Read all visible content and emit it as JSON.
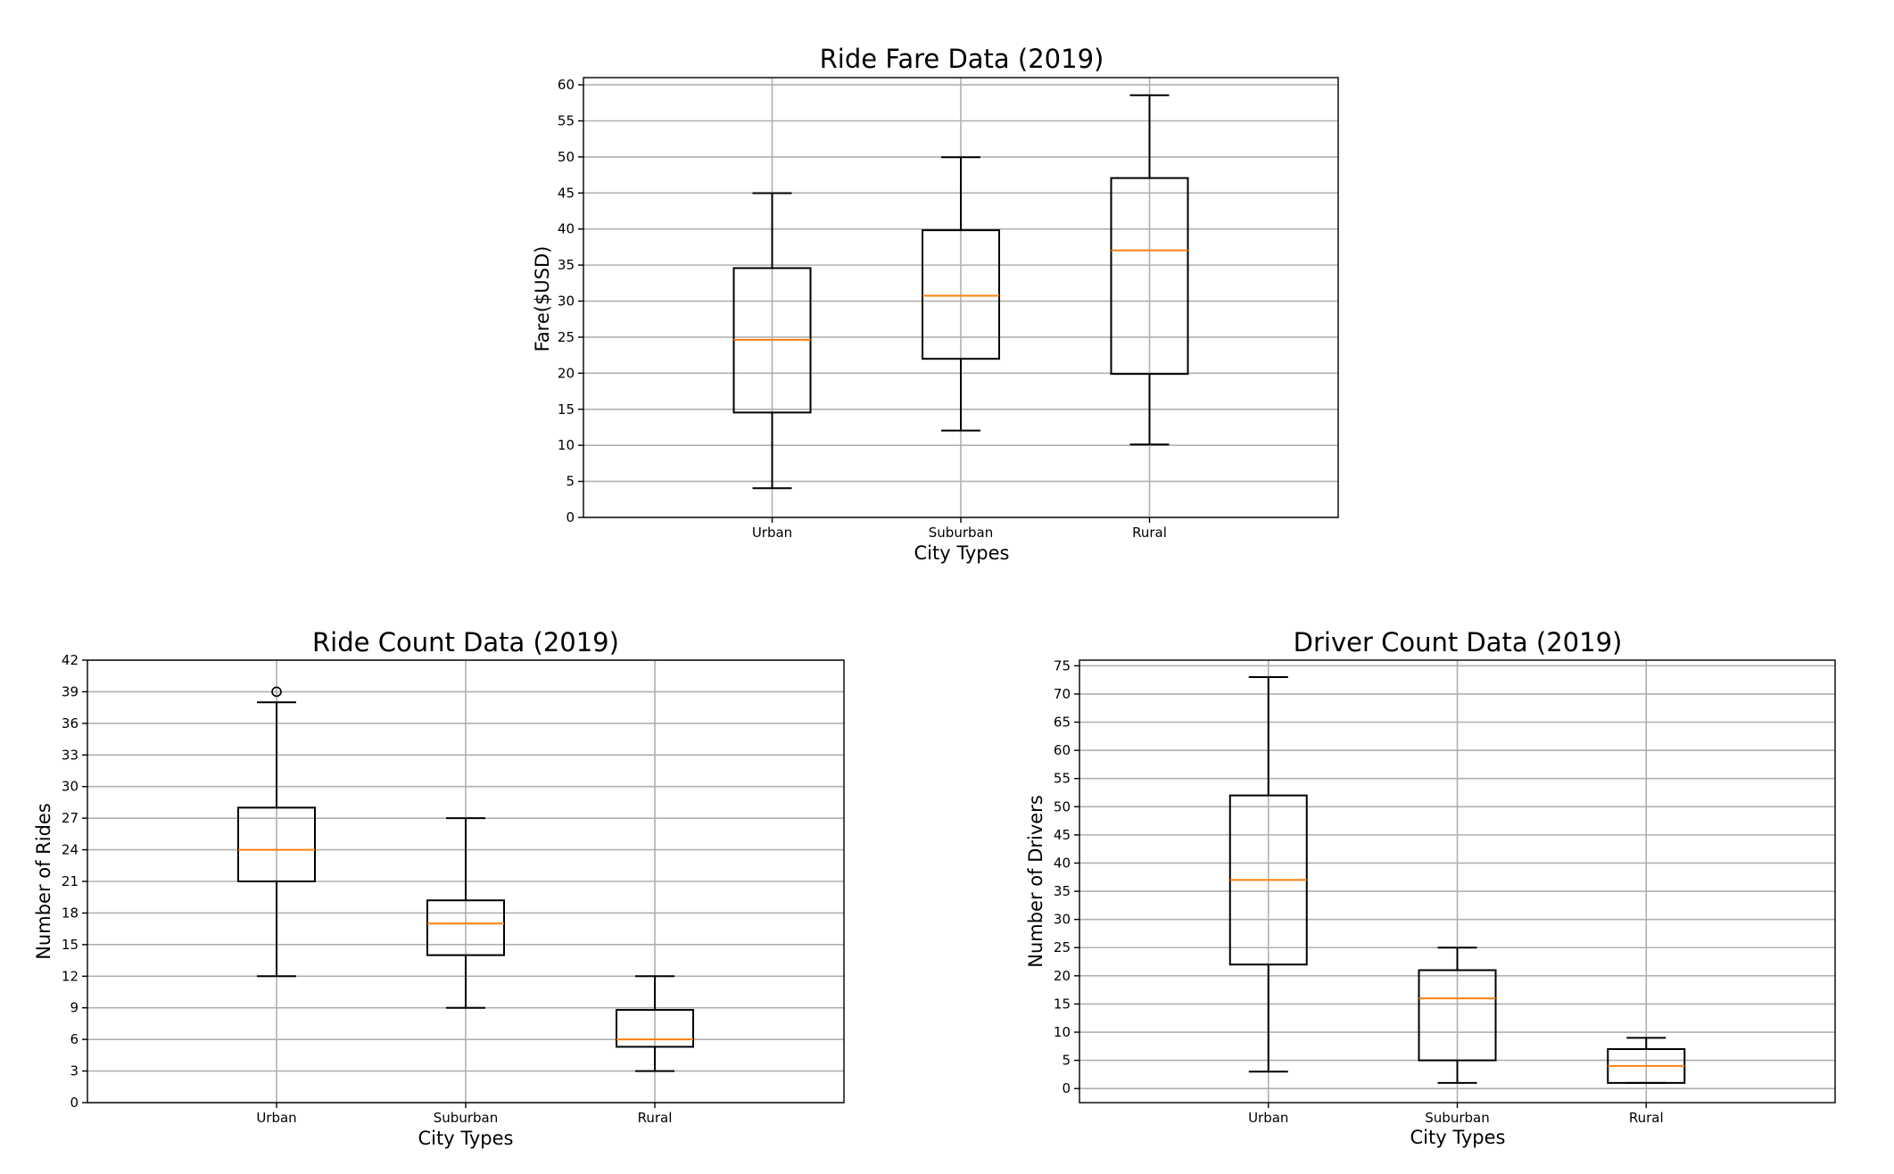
{
  "chart_data": [
    {
      "type": "box",
      "title": "Ride Fare Data (2019)",
      "xlabel": "City Types",
      "ylabel": "Fare($USD)",
      "categories": [
        "Urban",
        "Suburban",
        "Rural"
      ],
      "ylim": [
        0,
        61
      ],
      "yticks": [
        0,
        5,
        10,
        15,
        20,
        25,
        30,
        35,
        40,
        45,
        50,
        55,
        60
      ],
      "grid": true,
      "median_color": "#ff7f0e",
      "boxes": [
        {
          "category": "Urban",
          "whisker_low": 4.05,
          "q1": 14.55,
          "median": 24.64,
          "q3": 34.58,
          "whisker_high": 44.97,
          "outliers": []
        },
        {
          "category": "Suburban",
          "whisker_low": 12.05,
          "q1": 22.0,
          "median": 30.75,
          "q3": 39.83,
          "whisker_high": 49.96,
          "outliers": []
        },
        {
          "category": "Rural",
          "whisker_low": 10.11,
          "q1": 19.9,
          "median": 37.05,
          "q3": 47.07,
          "whisker_high": 58.55,
          "outliers": []
        }
      ]
    },
    {
      "type": "box",
      "title": "Ride Count Data (2019)",
      "xlabel": "City Types",
      "ylabel": "Number of Rides",
      "categories": [
        "Urban",
        "Suburban",
        "Rural"
      ],
      "ylim": [
        0,
        42
      ],
      "yticks": [
        0,
        3,
        6,
        9,
        12,
        15,
        18,
        21,
        24,
        27,
        30,
        33,
        36,
        39,
        42
      ],
      "grid": true,
      "median_color": "#ff7f0e",
      "boxes": [
        {
          "category": "Urban",
          "whisker_low": 12,
          "q1": 21,
          "median": 24,
          "q3": 28,
          "whisker_high": 38,
          "outliers": [
            39
          ]
        },
        {
          "category": "Suburban",
          "whisker_low": 9,
          "q1": 14,
          "median": 17,
          "q3": 19.2,
          "whisker_high": 27,
          "outliers": []
        },
        {
          "category": "Rural",
          "whisker_low": 3,
          "q1": 5.3,
          "median": 6,
          "q3": 8.8,
          "whisker_high": 12,
          "outliers": []
        }
      ]
    },
    {
      "type": "box",
      "title": "Driver Count Data (2019)",
      "xlabel": "City Types",
      "ylabel": "Number of Drivers",
      "categories": [
        "Urban",
        "Suburban",
        "Rural"
      ],
      "ylim": [
        -2.5,
        76
      ],
      "yticks": [
        0,
        5,
        10,
        15,
        20,
        25,
        30,
        35,
        40,
        45,
        50,
        55,
        60,
        65,
        70,
        75
      ],
      "grid": true,
      "median_color": "#ff7f0e",
      "boxes": [
        {
          "category": "Urban",
          "whisker_low": 3,
          "q1": 22,
          "median": 37,
          "q3": 52,
          "whisker_high": 73,
          "outliers": []
        },
        {
          "category": "Suburban",
          "whisker_low": 1,
          "q1": 5,
          "median": 16,
          "q3": 21,
          "whisker_high": 25,
          "outliers": []
        },
        {
          "category": "Rural",
          "whisker_low": 1,
          "q1": 1,
          "median": 4,
          "q3": 7,
          "whisker_high": 9,
          "outliers": []
        }
      ]
    }
  ]
}
